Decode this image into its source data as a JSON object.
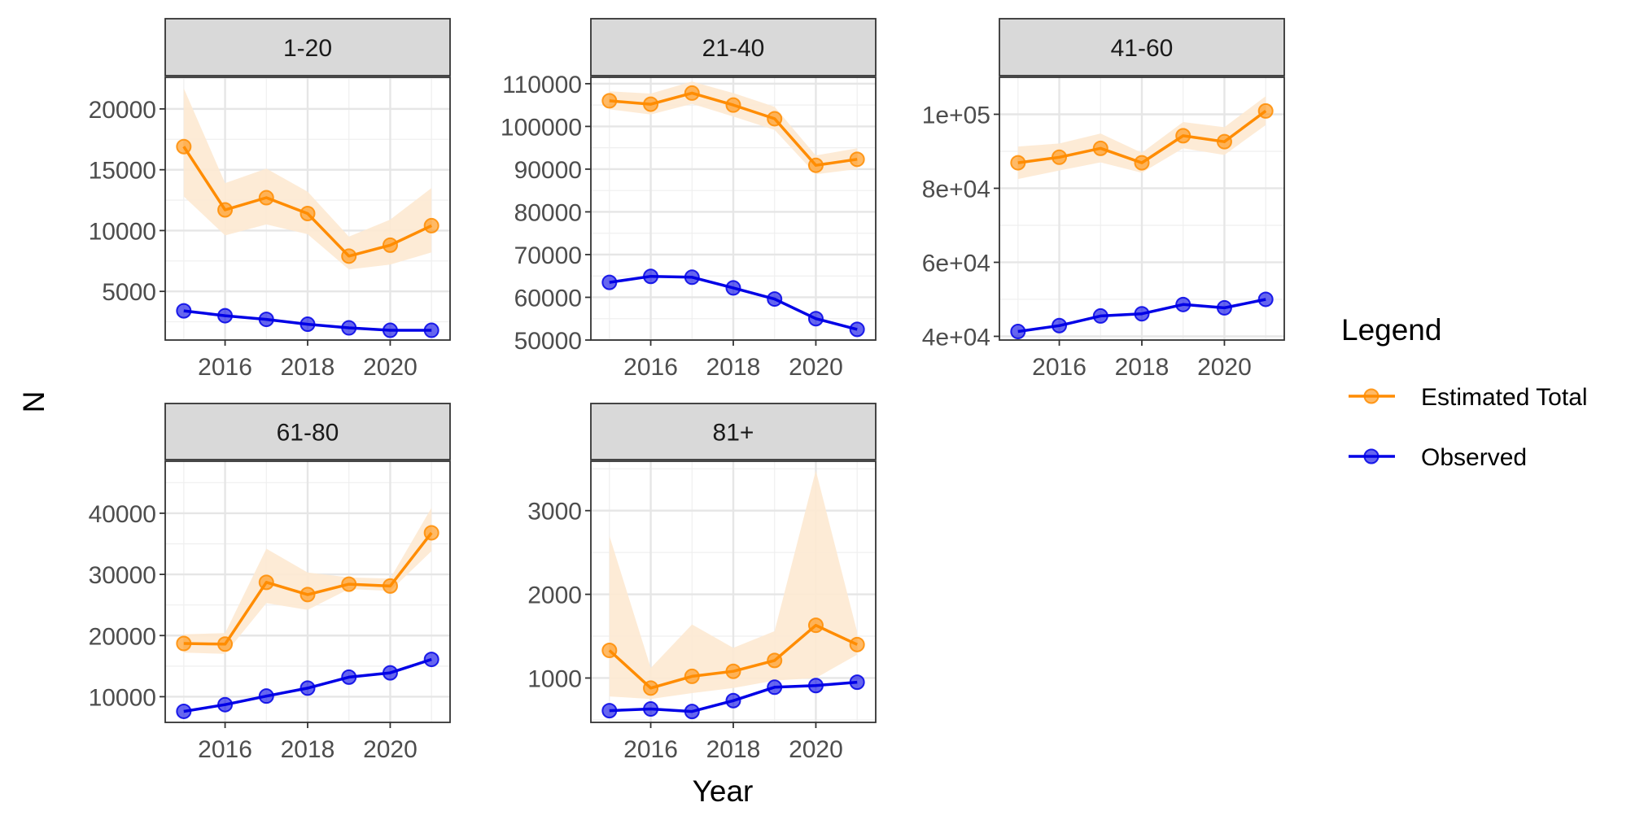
{
  "chart_data": {
    "type": "line",
    "xlabel": "Year",
    "ylabel": "N",
    "legend": {
      "title": "Legend",
      "position": "right",
      "items": [
        {
          "label": "Estimated Total",
          "color": "#ff8c00"
        },
        {
          "label": "Observed",
          "color": "#0000e6"
        }
      ]
    },
    "ribbon_color": "#fde9d2",
    "x": [
      2015,
      2016,
      2017,
      2018,
      2019,
      2020,
      2021
    ],
    "xticks": [
      2016,
      2018,
      2020
    ],
    "xlim": [
      2014.55,
      2021.45
    ],
    "panels": [
      {
        "label": "1-20",
        "ylim": [
          1000,
          22600
        ],
        "yticks": [
          5000,
          10000,
          15000,
          20000
        ],
        "ytick_labels": [
          "5000",
          "10000",
          "15000",
          "20000"
        ],
        "series": [
          {
            "name": "Estimated Total",
            "values": [
              16900,
              11700,
              12700,
              11400,
              7900,
              8800,
              10400
            ],
            "lower": [
              12800,
              9600,
              10500,
              9700,
              6800,
              7200,
              8200
            ],
            "upper": [
              21700,
              13900,
              15100,
              13200,
              9500,
              10900,
              13500
            ]
          },
          {
            "name": "Observed",
            "values": [
              3400,
              3000,
              2700,
              2300,
              2000,
              1800,
              1800
            ]
          }
        ]
      },
      {
        "label": "21-40",
        "ylim": [
          50000,
          111500
        ],
        "yticks": [
          50000,
          60000,
          70000,
          80000,
          90000,
          100000,
          110000
        ],
        "ytick_labels": [
          "50000",
          "60000",
          "70000",
          "80000",
          "90000",
          "100000",
          "110000"
        ],
        "series": [
          {
            "name": "Estimated Total",
            "values": [
              106000,
              105200,
              107800,
              105000,
              101800,
              90900,
              92300
            ],
            "lower": [
              104000,
              102800,
              105300,
              102300,
              99200,
              88800,
              90000
            ],
            "upper": [
              108200,
              107700,
              110500,
              107800,
              104600,
              93200,
              94900
            ]
          },
          {
            "name": "Observed",
            "values": [
              63500,
              64900,
              64700,
              62200,
              59600,
              55000,
              52500
            ]
          }
        ]
      },
      {
        "label": "41-60",
        "ylim": [
          39000,
          110000
        ],
        "yticks": [
          40000,
          60000,
          80000,
          100000
        ],
        "ytick_labels": [
          "4e+04",
          "6e+04",
          "8e+04",
          "1e+05"
        ],
        "series": [
          {
            "name": "Estimated Total",
            "values": [
              86900,
              88400,
              90800,
              86900,
              94200,
              92600,
              100900
            ],
            "lower": [
              82500,
              84800,
              87000,
              84200,
              90800,
              89000,
              97100
            ],
            "upper": [
              91300,
              92100,
              94800,
              89600,
              97900,
              96500,
              104900
            ]
          },
          {
            "name": "Observed",
            "values": [
              41300,
              42900,
              45500,
              46100,
              48600,
              47700,
              50000
            ]
          }
        ]
      },
      {
        "label": "61-80",
        "ylim": [
          5800,
          48500
        ],
        "yticks": [
          10000,
          20000,
          30000,
          40000
        ],
        "ytick_labels": [
          "10000",
          "20000",
          "30000",
          "40000"
        ],
        "series": [
          {
            "name": "Estimated Total",
            "values": [
              18700,
              18600,
              28700,
              26700,
              28400,
              28100,
              36800
            ],
            "lower": [
              17200,
              17000,
              25300,
              24200,
              27600,
              27300,
              33800
            ],
            "upper": [
              20200,
              20400,
              34200,
              30300,
              29500,
              29300,
              40900
            ]
          },
          {
            "name": "Observed",
            "values": [
              7600,
              8700,
              10100,
              11400,
              13200,
              13900,
              16100
            ]
          }
        ]
      },
      {
        "label": "81+",
        "ylim": [
          470,
          3590
        ],
        "yticks": [
          1000,
          2000,
          3000
        ],
        "ytick_labels": [
          "1000",
          "2000",
          "3000"
        ],
        "series": [
          {
            "name": "Estimated Total",
            "values": [
              1330,
              880,
              1020,
              1080,
              1210,
              1630,
              1400
            ],
            "lower": [
              780,
              750,
              820,
              880,
              970,
              1000,
              1280
            ],
            "upper": [
              2700,
              1120,
              1640,
              1360,
              1560,
              3480,
              1550
            ]
          },
          {
            "name": "Observed",
            "values": [
              610,
              630,
              600,
              730,
              890,
              910,
              950
            ]
          }
        ]
      }
    ]
  }
}
